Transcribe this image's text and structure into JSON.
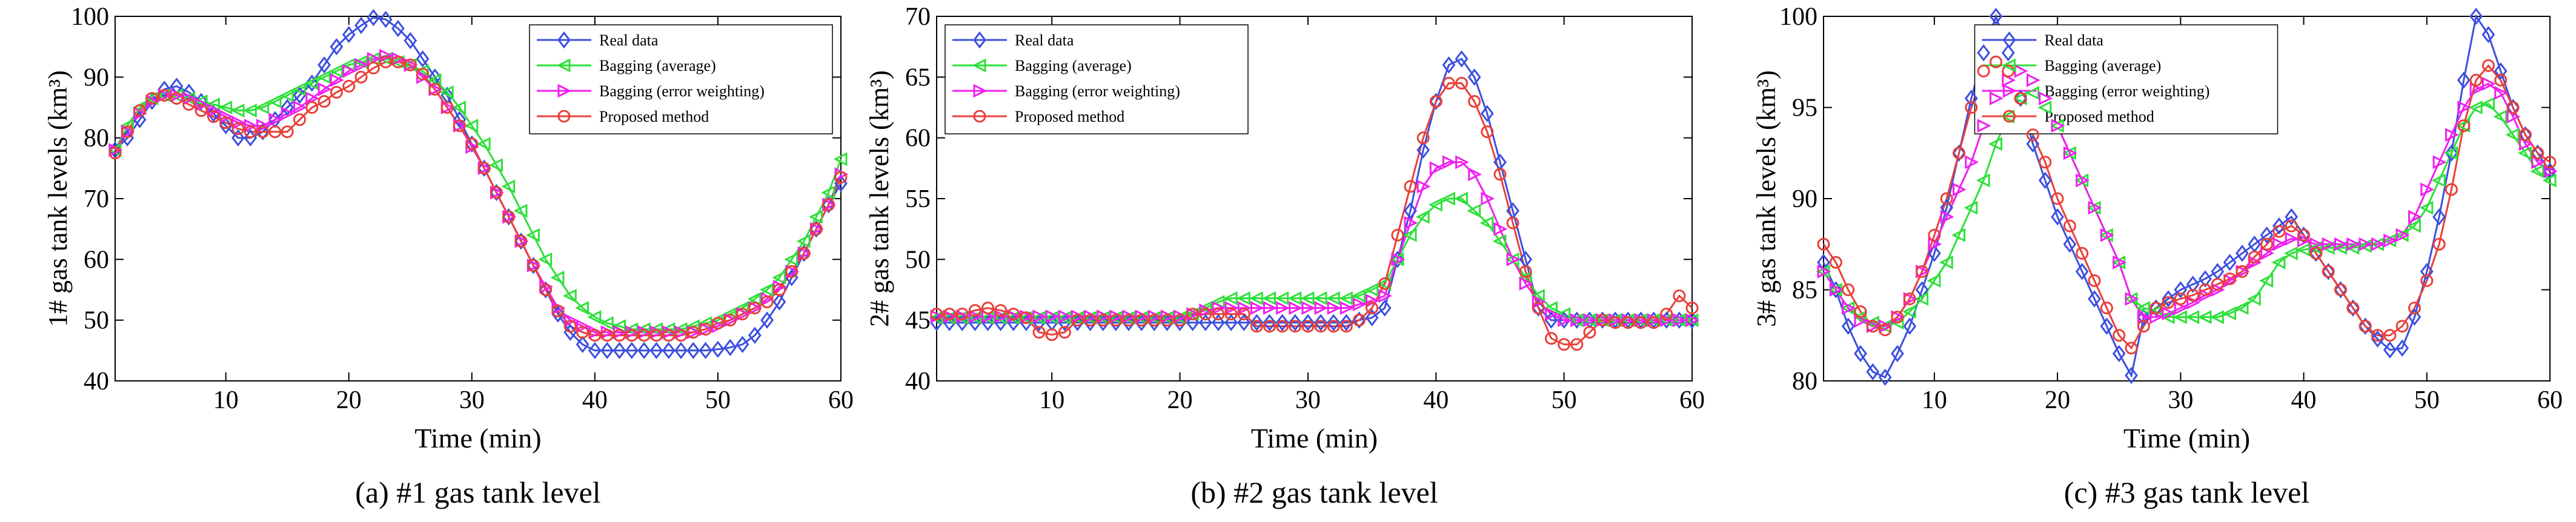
{
  "chart_data": [
    {
      "type": "line",
      "caption": "(a) #1 gas tank level",
      "xlabel": "Time (min)",
      "ylabel": "1# gas tank levels (km³)",
      "xlim": [
        1,
        60
      ],
      "xticks": [
        10,
        20,
        30,
        40,
        50,
        60
      ],
      "ylim": [
        40,
        100
      ],
      "yticks": [
        40,
        50,
        60,
        70,
        80,
        90,
        100
      ],
      "legend_loc": "upper right",
      "x": [
        1,
        2,
        3,
        4,
        5,
        6,
        7,
        8,
        9,
        10,
        11,
        12,
        13,
        14,
        15,
        16,
        17,
        18,
        19,
        20,
        21,
        22,
        23,
        24,
        25,
        26,
        27,
        28,
        29,
        30,
        31,
        32,
        33,
        34,
        35,
        36,
        37,
        38,
        39,
        40,
        41,
        42,
        43,
        44,
        45,
        46,
        47,
        48,
        49,
        50,
        51,
        52,
        53,
        54,
        55,
        56,
        57,
        58,
        59,
        60
      ],
      "series": [
        {
          "name": "Real data",
          "color": "#3b4fe0",
          "marker": "diamond",
          "values": [
            78,
            80,
            83,
            86,
            88,
            88.5,
            87.5,
            86,
            84,
            82,
            80,
            80,
            81,
            83,
            85,
            87,
            89,
            92,
            95,
            97,
            98.5,
            99.8,
            99.5,
            98,
            96,
            93,
            90,
            87,
            83,
            79,
            75,
            71,
            67,
            63,
            59,
            55,
            51,
            48,
            46,
            45,
            45,
            45,
            45,
            45,
            45,
            45,
            45,
            45,
            45,
            45.2,
            45.5,
            46,
            47.5,
            50,
            53,
            57,
            61,
            65,
            69,
            72.5
          ]
        },
        {
          "name": "Bagging (average)",
          "color": "#2ee03a",
          "marker": "triangle-left",
          "values": [
            78,
            82,
            85,
            86.5,
            87,
            87,
            86.5,
            86,
            85.5,
            85,
            84.5,
            84.5,
            85,
            86,
            87,
            88,
            89,
            90,
            91,
            92,
            92.5,
            93,
            93,
            92.5,
            92,
            91,
            89.5,
            87.5,
            85,
            82,
            79,
            75.5,
            72,
            68,
            64,
            60,
            57,
            54,
            52,
            50.5,
            49.5,
            49,
            48.5,
            48.5,
            48.5,
            48.5,
            48.5,
            49,
            49.5,
            50,
            51,
            52,
            53.5,
            55,
            57,
            60,
            63,
            67,
            71,
            76.5
          ]
        },
        {
          "name": "Bagging (error weighting)",
          "color": "#f020f0",
          "marker": "triangle-right",
          "values": [
            78,
            81,
            84,
            86,
            87,
            87,
            86.5,
            85.5,
            84.5,
            83.5,
            82.5,
            82,
            82,
            83,
            84,
            85,
            86.5,
            88,
            89.5,
            91,
            92,
            93,
            93.5,
            93,
            92,
            90,
            88,
            85,
            82,
            78.5,
            75,
            71,
            67,
            63,
            59,
            55.5,
            52,
            50,
            49,
            48,
            48,
            48,
            48,
            48,
            48,
            48,
            48,
            48,
            48.5,
            49,
            50,
            51,
            52,
            53.5,
            55.5,
            58,
            61,
            65,
            69,
            74
          ]
        },
        {
          "name": "Proposed method",
          "color": "#e8403a",
          "marker": "circle",
          "values": [
            77.5,
            81,
            84.5,
            86.5,
            87,
            86.5,
            85.5,
            84.5,
            83.5,
            82.5,
            81.5,
            81,
            81,
            81,
            81,
            83,
            85,
            86,
            87.5,
            88.5,
            90,
            91.5,
            92.5,
            92.5,
            92,
            90.5,
            88,
            85,
            82,
            79,
            75,
            71,
            67,
            63,
            59,
            55,
            51.5,
            49,
            48,
            47.5,
            47.5,
            47.5,
            47.5,
            47.5,
            47.5,
            47.5,
            47.5,
            48,
            48.5,
            49.5,
            50,
            51,
            52,
            53,
            55,
            58,
            61,
            65,
            69,
            73.5
          ]
        }
      ]
    },
    {
      "type": "line",
      "caption": "(b) #2 gas tank level",
      "xlabel": "Time (min)",
      "ylabel": "2# gas tank levels (km³)",
      "xlim": [
        1,
        60
      ],
      "xticks": [
        10,
        20,
        30,
        40,
        50,
        60
      ],
      "ylim": [
        40,
        70
      ],
      "yticks": [
        40,
        45,
        50,
        55,
        60,
        65,
        70
      ],
      "legend_loc": "upper left",
      "x": [
        1,
        2,
        3,
        4,
        5,
        6,
        7,
        8,
        9,
        10,
        11,
        12,
        13,
        14,
        15,
        16,
        17,
        18,
        19,
        20,
        21,
        22,
        23,
        24,
        25,
        26,
        27,
        28,
        29,
        30,
        31,
        32,
        33,
        34,
        35,
        36,
        37,
        38,
        39,
        40,
        41,
        42,
        43,
        44,
        45,
        46,
        47,
        48,
        49,
        50,
        51,
        52,
        53,
        54,
        55,
        56,
        57,
        58,
        59,
        60
      ],
      "series": [
        {
          "name": "Real data",
          "color": "#3b4fe0",
          "marker": "diamond",
          "values": [
            44.8,
            44.8,
            44.8,
            44.8,
            44.8,
            44.8,
            44.8,
            44.8,
            44.8,
            44.8,
            44.8,
            44.8,
            44.8,
            44.8,
            44.8,
            44.8,
            44.8,
            44.8,
            44.8,
            44.8,
            44.8,
            44.8,
            44.8,
            44.8,
            44.8,
            44.8,
            44.8,
            44.8,
            44.8,
            44.8,
            44.8,
            44.8,
            44.8,
            45,
            45.2,
            46,
            50,
            54,
            59,
            63,
            66,
            66.5,
            65,
            62,
            58,
            54,
            50,
            46,
            45,
            45,
            45,
            45,
            45,
            45,
            45,
            45,
            45,
            45,
            45,
            45
          ]
        },
        {
          "name": "Bagging (average)",
          "color": "#2ee03a",
          "marker": "triangle-left",
          "values": [
            45.2,
            45.2,
            45.2,
            45.2,
            45.2,
            45.2,
            45.2,
            45.2,
            45.2,
            45.2,
            45.2,
            45.2,
            45.2,
            45.2,
            45.2,
            45.2,
            45.2,
            45.2,
            45.2,
            45.2,
            45.5,
            46,
            46.5,
            46.8,
            46.8,
            46.8,
            46.8,
            46.8,
            46.8,
            46.8,
            46.8,
            46.8,
            46.8,
            47,
            47.5,
            48,
            50,
            52,
            53.5,
            54.5,
            55,
            55,
            54,
            53,
            51.5,
            50,
            48.5,
            47,
            46,
            45.5,
            45,
            45,
            45,
            45,
            45,
            45,
            45,
            45,
            45,
            45
          ]
        },
        {
          "name": "Bagging (error weighting)",
          "color": "#f020f0",
          "marker": "triangle-right",
          "values": [
            45.3,
            45.3,
            45.3,
            45.3,
            45.3,
            45.3,
            45.3,
            45.3,
            45.3,
            45.3,
            45.3,
            45.3,
            45.3,
            45.3,
            45.3,
            45.3,
            45.3,
            45.3,
            45.3,
            45.3,
            45.5,
            45.8,
            46,
            46,
            46,
            46,
            46,
            46,
            46,
            46,
            46,
            46,
            46,
            46.3,
            46.6,
            47,
            50,
            53,
            56,
            57.5,
            58,
            58,
            57,
            55,
            52.5,
            50,
            48,
            46.5,
            45.5,
            45,
            45,
            45,
            45,
            45,
            45,
            45,
            45,
            45,
            45,
            45
          ]
        },
        {
          "name": "Proposed method",
          "color": "#e8403a",
          "marker": "circle",
          "values": [
            45.5,
            45.5,
            45.5,
            45.8,
            46,
            45.8,
            45.5,
            45.2,
            44,
            43.8,
            44,
            45,
            45,
            45,
            45,
            45,
            45,
            45,
            45,
            45,
            45.5,
            45.5,
            45.5,
            45.5,
            45.5,
            44.5,
            44.5,
            44.5,
            44.5,
            44.5,
            44.5,
            44.5,
            44.5,
            45,
            46,
            48,
            52,
            56,
            60,
            63,
            64.5,
            64.5,
            63,
            60.5,
            57,
            53,
            49,
            46,
            43.5,
            43,
            43,
            44,
            45,
            44.8,
            44.8,
            44.8,
            44.8,
            45.5,
            47,
            46
          ]
        }
      ]
    },
    {
      "type": "line",
      "caption": "(c) #3 gas tank level",
      "xlabel": "Time (min)",
      "ylabel": "3# gas tank levels (km³)",
      "xlim": [
        1,
        60
      ],
      "xticks": [
        10,
        20,
        30,
        40,
        50,
        60
      ],
      "ylim": [
        80,
        100
      ],
      "yticks": [
        80,
        85,
        90,
        95,
        100
      ],
      "legend_loc": "upper center",
      "x": [
        1,
        2,
        3,
        4,
        5,
        6,
        7,
        8,
        9,
        10,
        11,
        12,
        13,
        14,
        15,
        16,
        17,
        18,
        19,
        20,
        21,
        22,
        23,
        24,
        25,
        26,
        27,
        28,
        29,
        30,
        31,
        32,
        33,
        34,
        35,
        36,
        37,
        38,
        39,
        40,
        41,
        42,
        43,
        44,
        45,
        46,
        47,
        48,
        49,
        50,
        51,
        52,
        53,
        54,
        55,
        56,
        57,
        58,
        59,
        60
      ],
      "series": [
        {
          "name": "Real data",
          "color": "#3b4fe0",
          "marker": "diamond",
          "values": [
            86.5,
            85,
            83,
            81.5,
            80.5,
            80.2,
            81.5,
            83,
            85,
            87,
            89.5,
            92.5,
            95.5,
            98,
            100,
            98,
            95.5,
            93,
            91,
            89,
            87.5,
            86,
            84.5,
            83,
            81.5,
            80.3,
            83.5,
            84,
            84.5,
            85,
            85.3,
            85.6,
            86,
            86.5,
            87,
            87.5,
            88,
            88.5,
            89,
            88,
            87,
            86,
            85,
            84,
            83,
            82.3,
            81.7,
            81.8,
            83.5,
            86,
            89,
            92.5,
            96.5,
            100,
            99,
            97,
            95,
            93.5,
            92.5,
            91.5
          ]
        },
        {
          "name": "Bagging (average)",
          "color": "#2ee03a",
          "marker": "triangle-left",
          "values": [
            86,
            85,
            84,
            83.5,
            83.2,
            83,
            83.2,
            83.8,
            84.5,
            85.5,
            86.5,
            88,
            89.5,
            91,
            93,
            94.5,
            95.5,
            95.8,
            95,
            94,
            92.5,
            91,
            89.5,
            88,
            86.5,
            84.5,
            84,
            83.8,
            83.5,
            83.5,
            83.5,
            83.5,
            83.5,
            83.7,
            84,
            84.5,
            85.5,
            86.5,
            87,
            87.2,
            87.3,
            87.3,
            87.3,
            87.3,
            87.4,
            87.5,
            87.7,
            88,
            88.5,
            89.5,
            91,
            92.5,
            94,
            95,
            95.2,
            94.5,
            93.5,
            92.5,
            91.5,
            91
          ]
        },
        {
          "name": "Bagging (error weighting)",
          "color": "#f020f0",
          "marker": "triangle-right",
          "values": [
            86,
            85,
            84,
            83.3,
            83,
            83,
            83.5,
            84.5,
            86,
            87.5,
            89,
            90.5,
            92,
            94,
            95.5,
            96.5,
            97,
            96.5,
            95.5,
            94,
            92.5,
            91,
            89.5,
            88,
            86.5,
            84.5,
            83.5,
            83.5,
            83.7,
            84,
            84.3,
            84.7,
            85,
            85.5,
            86,
            86.5,
            87,
            87.5,
            87.8,
            87.7,
            87.5,
            87.5,
            87.5,
            87.5,
            87.5,
            87.5,
            87.7,
            88,
            89,
            90.5,
            92,
            93.5,
            95,
            96,
            96.3,
            95.8,
            94.5,
            93,
            92,
            91.5
          ]
        },
        {
          "name": "Proposed method",
          "color": "#e8403a",
          "marker": "circle",
          "values": [
            87.5,
            86.5,
            85,
            83.8,
            83,
            82.8,
            83.5,
            84.5,
            86,
            88,
            90,
            92.5,
            95,
            97,
            97.5,
            97,
            95.5,
            93.5,
            92,
            90,
            88.5,
            87,
            85.5,
            84,
            82.5,
            81.8,
            83,
            84,
            84.3,
            84.5,
            84.7,
            85,
            85.3,
            85.6,
            86,
            86.8,
            87.5,
            88.2,
            88.5,
            88,
            87,
            86,
            85,
            84,
            83,
            82.5,
            82.5,
            83,
            84,
            85.5,
            87.5,
            90.5,
            94,
            96.5,
            97.3,
            96.5,
            95,
            93.5,
            92.5,
            92
          ]
        }
      ]
    }
  ]
}
